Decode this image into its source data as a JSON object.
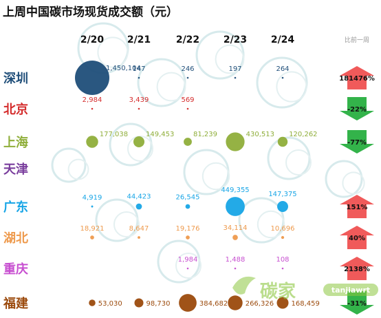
{
  "chart_data": {
    "type": "scatter",
    "title": "上周中国碳市场现货成交额（元）",
    "categories": [
      "2/20",
      "2/21",
      "2/22",
      "2/23",
      "2/24"
    ],
    "change_header": "比前一周",
    "series": [
      {
        "name": "深圳",
        "color": "#1f4e79",
        "values": [
          1450104,
          147,
          246,
          197,
          264
        ],
        "labels": [
          "1,450,104",
          "147",
          "246",
          "197",
          "264"
        ],
        "change": "181476%",
        "direction": "up"
      },
      {
        "name": "北京",
        "color": "#d42b2b",
        "values": [
          2984,
          3439,
          569,
          null,
          null
        ],
        "labels": [
          "2,984",
          "3,439",
          "569",
          "",
          ""
        ],
        "change": "-22%",
        "direction": "down"
      },
      {
        "name": "上海",
        "color": "#8fae3a",
        "values": [
          177038,
          149453,
          81239,
          430513,
          120262
        ],
        "labels": [
          "177,038",
          "149,453",
          "81,239",
          "430,513",
          "120,262"
        ],
        "change": "-77%",
        "direction": "down"
      },
      {
        "name": "天津",
        "color": "#7a3e9d",
        "values": [
          null,
          null,
          null,
          null,
          null
        ],
        "labels": [
          "",
          "",
          "",
          "",
          ""
        ],
        "change": "",
        "direction": "none"
      },
      {
        "name": "广东",
        "color": "#17a5e6",
        "values": [
          4919,
          44423,
          26545,
          449355,
          147375
        ],
        "labels": [
          "4,919",
          "44,423",
          "26,545",
          "449,355",
          "147,375"
        ],
        "change": "151%",
        "direction": "up"
      },
      {
        "name": "湖北",
        "color": "#ee9a4d",
        "values": [
          18921,
          8647,
          19176,
          34114,
          10696
        ],
        "labels": [
          "18,921",
          "8,647",
          "19,176",
          "34,114",
          "10,696"
        ],
        "change": "40%",
        "direction": "up"
      },
      {
        "name": "重庆",
        "color": "#c74fd0",
        "values": [
          null,
          null,
          1984,
          1488,
          108
        ],
        "labels": [
          "",
          "",
          "1,984",
          "1,488",
          "108"
        ],
        "change": "2138%",
        "direction": "up"
      },
      {
        "name": "福建",
        "color": "#9b4a0c",
        "values": [
          53030,
          98730,
          384682,
          266326,
          168459
        ],
        "labels": [
          "53,030",
          "98,730",
          "384,682",
          "266,326",
          "168,459"
        ],
        "change": "-31%",
        "direction": "down"
      }
    ],
    "arrow_colors": {
      "up": "#f05a5a",
      "down": "#33b34a"
    },
    "watermark": {
      "logo": "碳家",
      "site": "tanjiawrt"
    }
  }
}
